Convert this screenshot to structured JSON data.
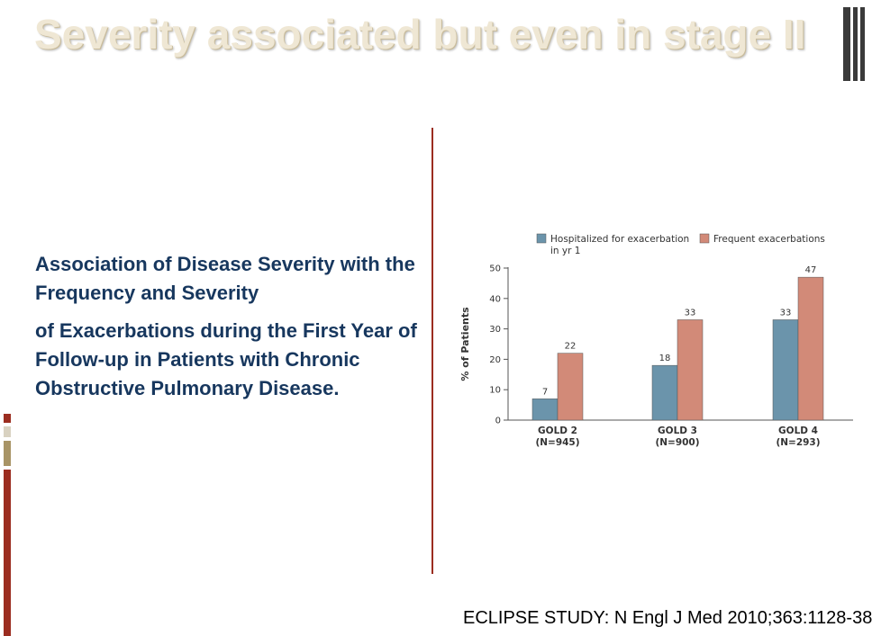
{
  "slide": {
    "title": "Severity associated but even in stage II",
    "caption_line1": "Association of Disease Severity with the Frequency and Severity",
    "caption_line2": "of Exacerbations during the First Year of Follow-up in Patients with Chronic Obstructive Pulmonary Disease.",
    "footer": "ECLIPSE STUDY: N Engl J Med 2010;363:1128-38"
  },
  "colors": {
    "title": "#efe7d4",
    "caption": "#17375e",
    "divider": "#9b2d20",
    "hospitalized": "#6b94ab",
    "frequent": "#d28a78"
  },
  "chart_data": {
    "type": "bar",
    "categories": [
      {
        "line1": "GOLD 2",
        "line2": "(N=945)"
      },
      {
        "line1": "GOLD 3",
        "line2": "(N=900)"
      },
      {
        "line1": "GOLD 4",
        "line2": "(N=293)"
      }
    ],
    "series": [
      {
        "name": "Hospitalized for exacerbation",
        "name_line2": "in yr 1",
        "color": "#6b94ab",
        "values": [
          7,
          18,
          33
        ]
      },
      {
        "name": "Frequent exacerbations",
        "color": "#d28a78",
        "values": [
          22,
          33,
          47
        ]
      }
    ],
    "ylabel": "% of Patients",
    "ylim": [
      0,
      50
    ],
    "yticks": [
      0,
      10,
      20,
      30,
      40,
      50
    ],
    "legend": "top",
    "grid": false
  }
}
